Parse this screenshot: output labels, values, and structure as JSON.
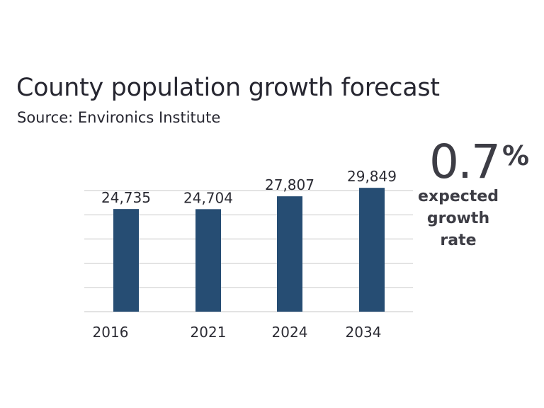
{
  "chart_data": {
    "type": "bar",
    "title": "County population growth forecast",
    "subtitle": "Source: Environics Institute",
    "categories": [
      "2016",
      "2021",
      "2024",
      "2034"
    ],
    "values": [
      24735,
      24704,
      27807,
      29849
    ],
    "value_labels": [
      "24,735",
      "24,704",
      "27,807",
      "29,849"
    ],
    "xlabel": "",
    "ylabel": "",
    "ylim": [
      0,
      35000
    ],
    "grid": true,
    "y_tick_labels_shown": false,
    "colors": {
      "bar": "#264d73",
      "grid": "#d2d2d2",
      "text": "#2b2b33"
    }
  },
  "callout": {
    "value": "0.7",
    "unit": "%",
    "label_lines": [
      "expected",
      "growth",
      "rate"
    ]
  }
}
